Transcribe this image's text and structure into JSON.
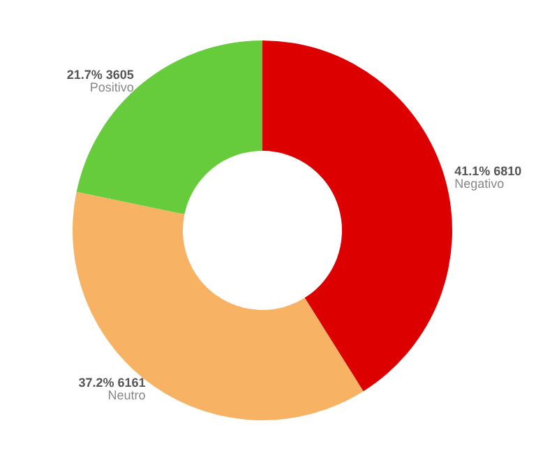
{
  "chart_data": {
    "type": "donut",
    "categories": [
      "Negativo",
      "Neutro",
      "Positivo"
    ],
    "values": [
      6810,
      6161,
      3605
    ],
    "colors": [
      "#dd0000",
      "#f7b263",
      "#66cc3c"
    ],
    "value_labels": [
      "41.1% 6810",
      "37.2% 6161",
      "21.7% 3605"
    ],
    "legend": false
  }
}
